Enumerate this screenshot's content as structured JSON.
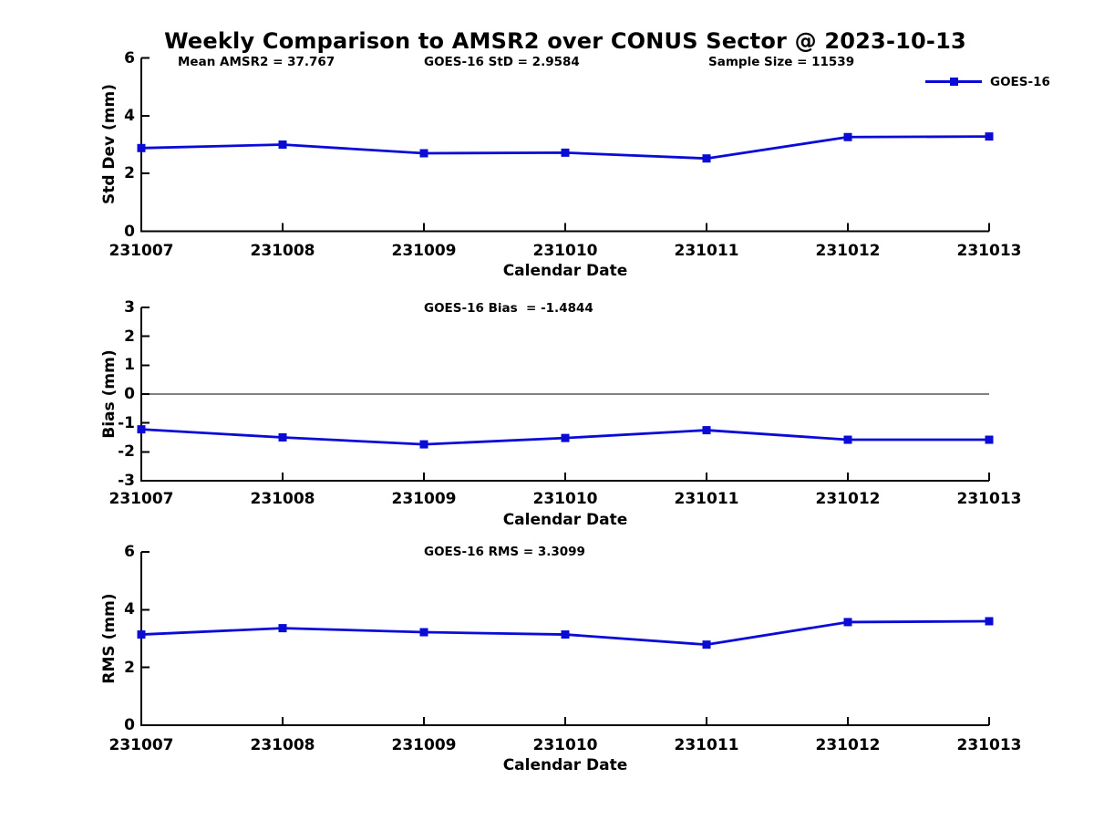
{
  "title": "Weekly Comparison to AMSR2 over CONUS Sector @ 2023-10-13",
  "legend": {
    "label": "GOES-16",
    "marker": "square"
  },
  "colors": {
    "line": "#0b0bd8",
    "axis": "#000000",
    "text": "#000000",
    "background": "#ffffff"
  },
  "chart_data": {
    "type": "line",
    "title": "Weekly Comparison to AMSR2 over CONUS Sector @ 2023-10-13",
    "categories": [
      "231007",
      "231008",
      "231009",
      "231010",
      "231011",
      "231012",
      "231013"
    ],
    "xlabel": "Calendar Date",
    "legend_position": "top-right",
    "grid": false,
    "panels": [
      {
        "name": "std-dev",
        "ylabel": "Std Dev (mm)",
        "ylim": [
          0,
          6
        ],
        "yticks": [
          "0",
          "2",
          "4",
          "6"
        ],
        "annotations": [
          "Mean AMSR2 = 37.767",
          "GOES-16 StD = 2.9584",
          "Sample Size = 11539"
        ],
        "zero_line": false,
        "series": [
          {
            "name": "GOES-16",
            "values": [
              2.88,
              3.0,
              2.7,
              2.72,
              2.52,
              3.26,
              3.28
            ]
          }
        ]
      },
      {
        "name": "bias",
        "ylabel": "Bias (mm)",
        "ylim": [
          -3,
          3
        ],
        "yticks": [
          "-3",
          "-2",
          "-1",
          "0",
          "1",
          "2",
          "3"
        ],
        "annotations": [
          "GOES-16 Bias  = -1.4844"
        ],
        "zero_line": true,
        "series": [
          {
            "name": "GOES-16",
            "values": [
              -1.22,
              -1.5,
              -1.74,
              -1.52,
              -1.25,
              -1.58,
              -1.58
            ]
          }
        ]
      },
      {
        "name": "rms",
        "ylabel": "RMS (mm)",
        "ylim": [
          0,
          6
        ],
        "yticks": [
          "0",
          "2",
          "4",
          "6"
        ],
        "annotations": [
          "GOES-16 RMS = 3.3099"
        ],
        "zero_line": false,
        "series": [
          {
            "name": "GOES-16",
            "values": [
              3.14,
              3.36,
              3.22,
              3.14,
              2.79,
              3.57,
              3.6
            ]
          }
        ]
      }
    ]
  }
}
